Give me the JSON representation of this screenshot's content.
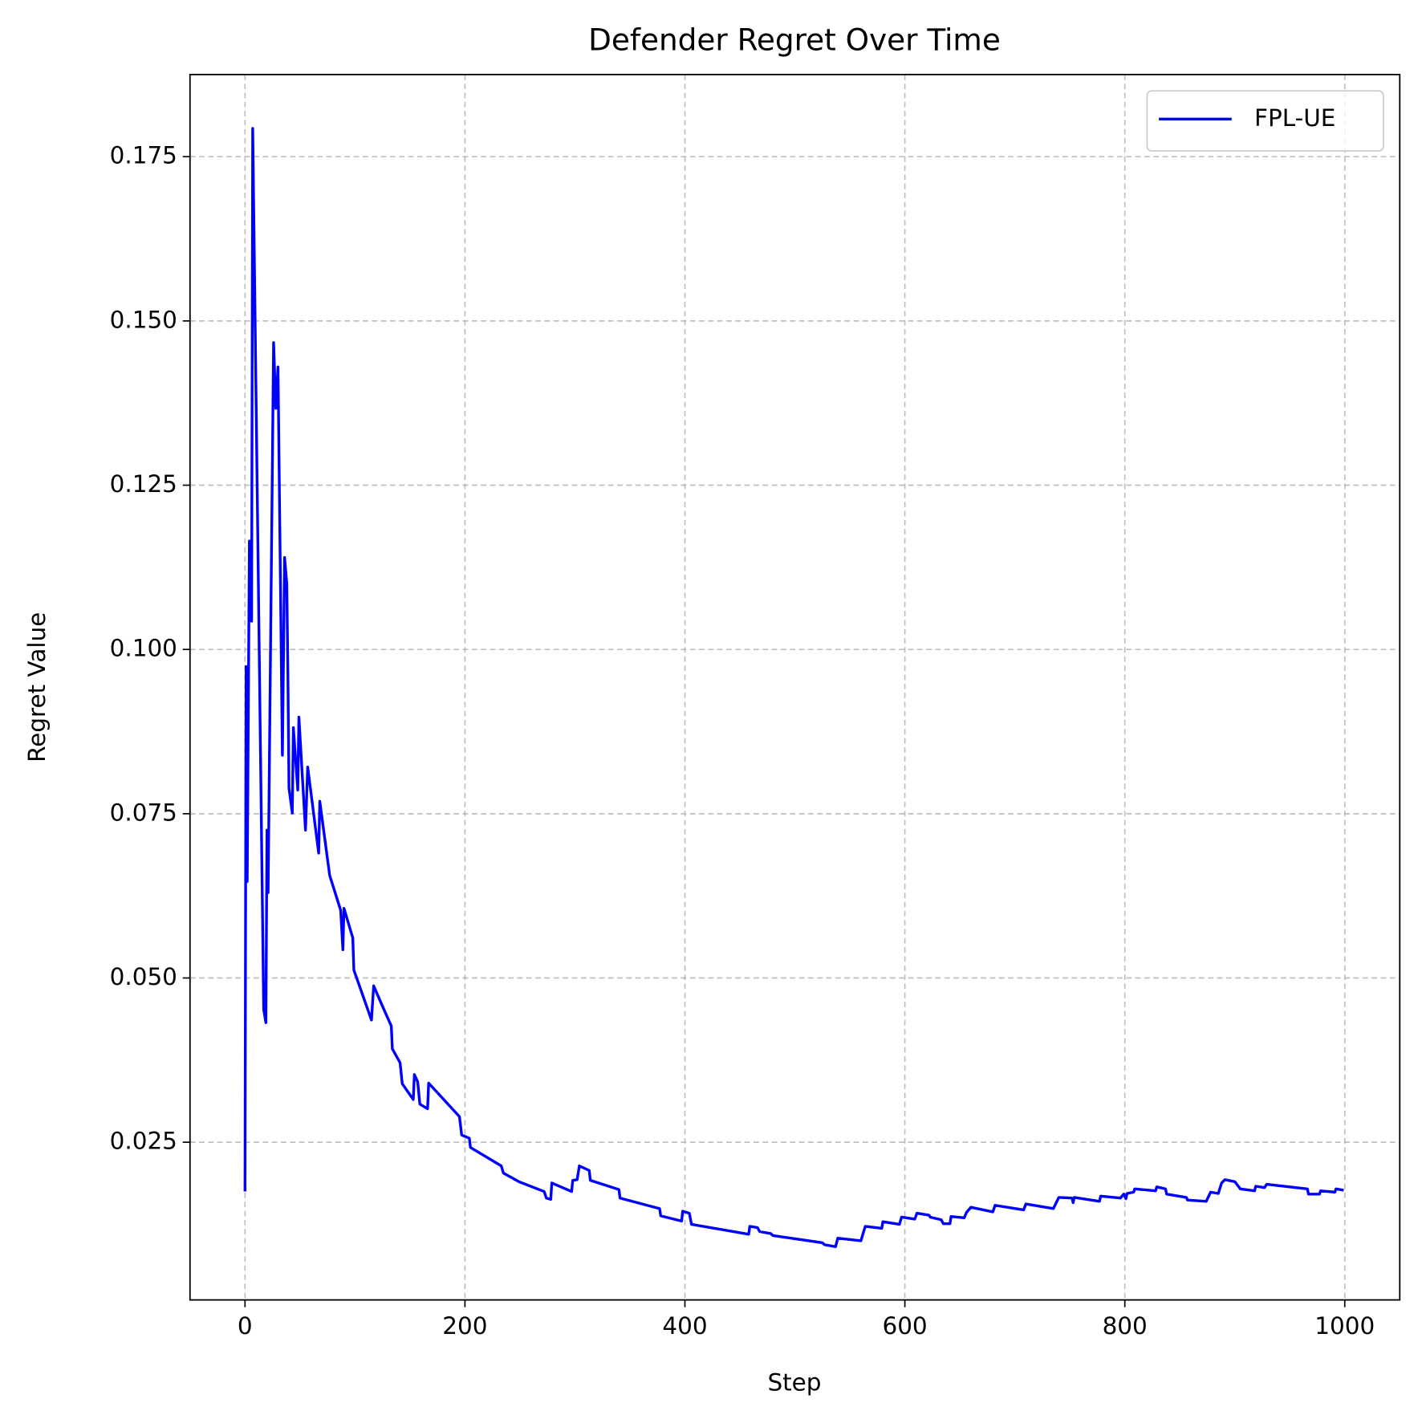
{
  "chart_data": {
    "type": "line",
    "title": "Defender Regret Over Time",
    "xlabel": "Step",
    "ylabel": "Regret Value",
    "x": [
      0,
      1,
      2,
      4,
      6,
      7,
      17,
      19,
      20,
      21,
      26,
      28,
      30,
      34,
      36,
      38,
      39,
      40,
      43,
      44,
      48,
      49,
      55,
      57,
      67,
      68,
      77,
      87,
      89,
      90,
      98,
      99,
      115,
      117,
      125,
      133,
      134,
      141,
      143,
      153,
      154,
      157,
      159,
      166,
      167,
      195,
      197,
      204,
      205,
      233,
      235,
      249,
      272,
      274,
      278,
      279,
      297,
      298,
      302,
      304,
      313,
      314,
      340,
      341,
      377,
      378,
      397,
      398,
      404,
      406,
      458,
      459,
      466,
      468,
      478,
      480,
      525,
      527,
      537,
      539,
      560,
      564,
      579,
      580,
      595,
      597,
      609,
      611,
      622,
      623,
      633,
      635,
      641,
      642,
      654,
      656,
      660,
      680,
      682,
      708,
      710,
      735,
      740,
      752,
      753,
      754,
      777,
      778,
      796,
      799,
      801,
      802,
      808,
      809,
      828,
      829,
      837,
      838,
      856,
      857,
      874,
      878,
      885,
      888,
      891,
      900,
      905,
      918,
      919,
      927,
      929,
      966,
      967,
      977,
      978,
      991,
      992,
      999
    ],
    "series": [
      {
        "name": "FPL-UE",
        "color": "#0000ff",
        "values": [
          0.0175,
          0.0974,
          0.0647,
          0.1165,
          0.1043,
          0.1793,
          0.0452,
          0.0432,
          0.0725,
          0.063,
          0.1467,
          0.1367,
          0.143,
          0.0839,
          0.114,
          0.11,
          0.0964,
          0.0789,
          0.0751,
          0.0881,
          0.0786,
          0.0897,
          0.0725,
          0.0821,
          0.069,
          0.0769,
          0.0656,
          0.0603,
          0.0543,
          0.0606,
          0.0561,
          0.0512,
          0.0436,
          0.0488,
          0.0457,
          0.0427,
          0.0392,
          0.0371,
          0.0339,
          0.0315,
          0.0353,
          0.0342,
          0.0308,
          0.0301,
          0.034,
          0.0289,
          0.0261,
          0.0256,
          0.0242,
          0.0214,
          0.0203,
          0.019,
          0.0175,
          0.0165,
          0.0163,
          0.0188,
          0.0175,
          0.0192,
          0.0193,
          0.0214,
          0.0207,
          0.0192,
          0.0178,
          0.0165,
          0.0149,
          0.0138,
          0.013,
          0.0145,
          0.0142,
          0.0125,
          0.011,
          0.0122,
          0.012,
          0.0114,
          0.0111,
          0.0108,
          0.0097,
          0.0094,
          0.0091,
          0.0104,
          0.01,
          0.0122,
          0.0119,
          0.0129,
          0.0125,
          0.0136,
          0.0133,
          0.0142,
          0.0139,
          0.0136,
          0.0132,
          0.0126,
          0.0126,
          0.0137,
          0.0135,
          0.0143,
          0.0151,
          0.0144,
          0.0154,
          0.0147,
          0.0156,
          0.0149,
          0.0166,
          0.0165,
          0.0158,
          0.0166,
          0.016,
          0.0168,
          0.0165,
          0.0171,
          0.0164,
          0.0172,
          0.0174,
          0.0179,
          0.0176,
          0.0182,
          0.0179,
          0.0171,
          0.0166,
          0.0162,
          0.016,
          0.0174,
          0.0172,
          0.0188,
          0.0193,
          0.019,
          0.0179,
          0.0176,
          0.0183,
          0.0181,
          0.0186,
          0.0179,
          0.0171,
          0.0171,
          0.0176,
          0.0174,
          0.0179,
          0.0177
        ]
      }
    ],
    "xlim": [
      -50,
      1050
    ],
    "ylim": [
      0.001,
      0.1875
    ],
    "xticks": [
      0,
      200,
      400,
      600,
      800,
      1000
    ],
    "yticks": [
      0.025,
      {
        "value": 0.05,
        "label": "0.050"
      },
      0.075,
      {
        "value": 0.1,
        "label": "0.100"
      },
      0.125,
      {
        "value": 0.15,
        "label": "0.150"
      },
      0.175
    ],
    "grid": true,
    "legend": "upper right"
  }
}
